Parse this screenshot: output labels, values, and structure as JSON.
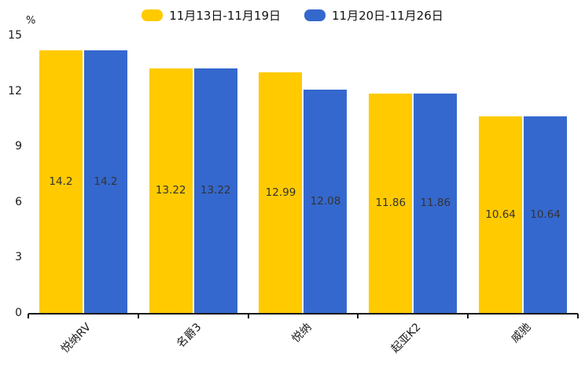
{
  "chart_data": {
    "type": "bar",
    "title": "",
    "xlabel": "",
    "ylabel": "%",
    "categories": [
      "悦纳RV",
      "名爵3",
      "悦纳",
      "起亚K2",
      "威驰"
    ],
    "series": [
      {
        "name": "11月13日-11月19日",
        "color": "#FFCA00",
        "values": [
          14.2,
          13.22,
          12.99,
          11.86,
          10.64
        ]
      },
      {
        "name": "11月20日-11月26日",
        "color": "#3568CE",
        "values": [
          14.2,
          13.22,
          12.08,
          11.86,
          10.64
        ]
      }
    ],
    "data_labels_shown": true,
    "ylim": [
      0,
      15
    ],
    "yticks": [
      0,
      3,
      6,
      9,
      12,
      15
    ],
    "grid": false,
    "legend_position": "top",
    "colors": {
      "background": "#ffffff",
      "axis": "#1a1a1a",
      "bar_label_text": "#333333",
      "legend_text": "#111111"
    }
  }
}
